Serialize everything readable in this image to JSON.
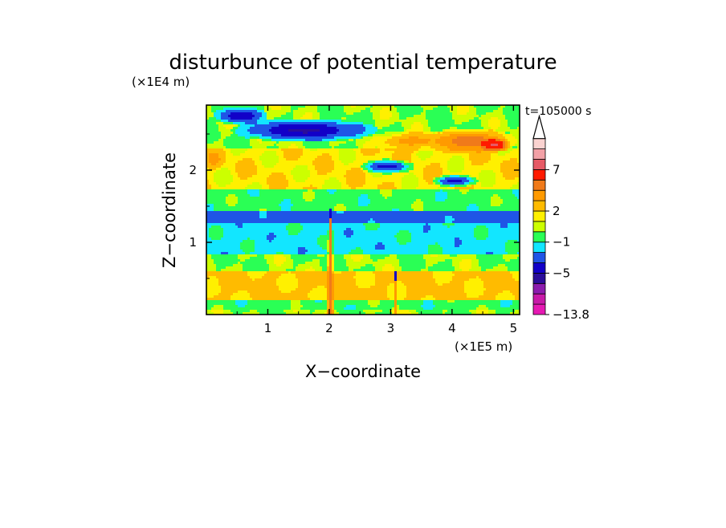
{
  "chart_data": {
    "type": "heatmap",
    "title": "disturbunce of potential temperature",
    "time_label": "t=105000 s",
    "xlabel": "X−coordinate",
    "ylabel": "Z−coordinate",
    "x_unit": "(×1E5 m)",
    "y_unit": "(×1E4 m)",
    "xlim": [
      0,
      5.1
    ],
    "ylim": [
      0,
      2.9
    ],
    "x_ticks": [
      "1",
      "2",
      "3",
      "4",
      "5"
    ],
    "y_ticks": [
      "1",
      "2"
    ],
    "colorbar": {
      "colors": [
        "#e619b3",
        "#c81aa8",
        "#8c1cae",
        "#2a0d9a",
        "#1200c8",
        "#1f55e6",
        "#12e6ff",
        "#2aff55",
        "#ccff00",
        "#fff000",
        "#ffbb00",
        "#ff9a00",
        "#f07a1a",
        "#ff1a00",
        "#e65a66",
        "#f2a0a6",
        "#fad2d0"
      ],
      "tick_labels": [
        "−13.8",
        "−5",
        "−1",
        "2",
        "7"
      ],
      "tick_after_level": [
        0,
        4,
        7,
        10,
        14
      ],
      "open_top": true
    },
    "features": [
      {
        "kind": "band",
        "z": [
          0,
          0.08
        ],
        "value": 1
      },
      {
        "kind": "band",
        "z": [
          0.08,
          0.2
        ],
        "value": 0.5
      },
      {
        "kind": "band",
        "z": [
          0.2,
          0.6
        ],
        "value": 2.2
      },
      {
        "kind": "band",
        "z": [
          0.6,
          0.85
        ],
        "value": 1
      },
      {
        "kind": "band",
        "z": [
          0.85,
          1.25
        ],
        "value": -0.4
      },
      {
        "kind": "band",
        "z": [
          1.25,
          1.45
        ],
        "value": -1.6
      },
      {
        "kind": "band",
        "z": [
          1.45,
          1.75
        ],
        "value": 0.5
      },
      {
        "kind": "band",
        "z": [
          1.75,
          2.3
        ],
        "value": 1.8
      },
      {
        "kind": "band",
        "z": [
          2.3,
          2.9
        ],
        "value": 1
      },
      {
        "kind": "blob",
        "x": 1.6,
        "z": 2.55,
        "rx": 0.95,
        "rz": 0.13,
        "value": -5.5
      },
      {
        "kind": "blob",
        "x": 0.55,
        "z": 2.75,
        "rx": 0.35,
        "rz": 0.1,
        "value": -5
      },
      {
        "kind": "blob",
        "x": 2.95,
        "z": 2.05,
        "rx": 0.35,
        "rz": 0.08,
        "value": -4
      },
      {
        "kind": "blob",
        "x": 4.05,
        "z": 1.85,
        "rx": 0.3,
        "rz": 0.07,
        "value": -4
      },
      {
        "kind": "blob",
        "x": 4.3,
        "z": 2.4,
        "rx": 0.6,
        "rz": 0.14,
        "value": 5
      },
      {
        "kind": "blob",
        "x": 3.35,
        "z": 2.4,
        "rx": 0.55,
        "rz": 0.12,
        "value": 3.5
      },
      {
        "kind": "blob",
        "x": 4.7,
        "z": 2.35,
        "rx": 0.2,
        "rz": 0.08,
        "value": 7.5
      },
      {
        "kind": "blob",
        "x": 0.12,
        "z": 2.15,
        "rx": 0.15,
        "rz": 0.12,
        "value": 3.5
      },
      {
        "kind": "plume",
        "x": 2.02,
        "z_top": 1.45,
        "width": 0.08,
        "value": 5
      },
      {
        "kind": "plume",
        "x": 3.08,
        "z_top": 0.6,
        "width": 0.05,
        "value": 4
      }
    ]
  }
}
